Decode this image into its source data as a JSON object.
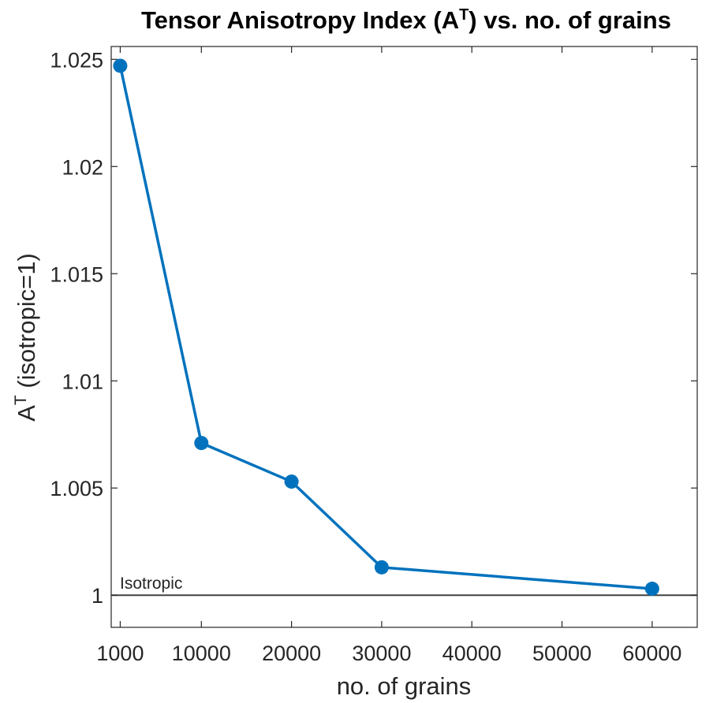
{
  "chart_data": {
    "type": "line",
    "title": {
      "prefix": "Tensor Anisotropy Index (A",
      "superscript": "T",
      "suffix": ") vs. no. of grains"
    },
    "xlabel": "no. of grains",
    "ylabel": {
      "base": "A",
      "superscript": "T",
      "suffix": " (isotropic=1)"
    },
    "xlim": [
      0,
      65000
    ],
    "ylim": [
      0.9985,
      1.0256
    ],
    "x_ticks": [
      1000,
      10000,
      20000,
      30000,
      40000,
      50000,
      60000
    ],
    "x_tick_labels": [
      "1000",
      "10000",
      "20000",
      "30000",
      "40000",
      "50000",
      "60000"
    ],
    "y_ticks": [
      1,
      1.005,
      1.01,
      1.015,
      1.02,
      1.025
    ],
    "y_tick_labels": [
      "1",
      "1.005",
      "1.01",
      "1.015",
      "1.02",
      "1.025"
    ],
    "grid": false,
    "series": [
      {
        "x": [
          1000,
          10000,
          20000,
          30000,
          60000
        ],
        "y": [
          1.0247,
          1.0071,
          1.0053,
          1.0013,
          1.0003
        ],
        "color": "#0072BD",
        "marker": "circle"
      }
    ],
    "reference_line": {
      "y": 1,
      "label": "Isotropic",
      "color": "#404040"
    }
  }
}
